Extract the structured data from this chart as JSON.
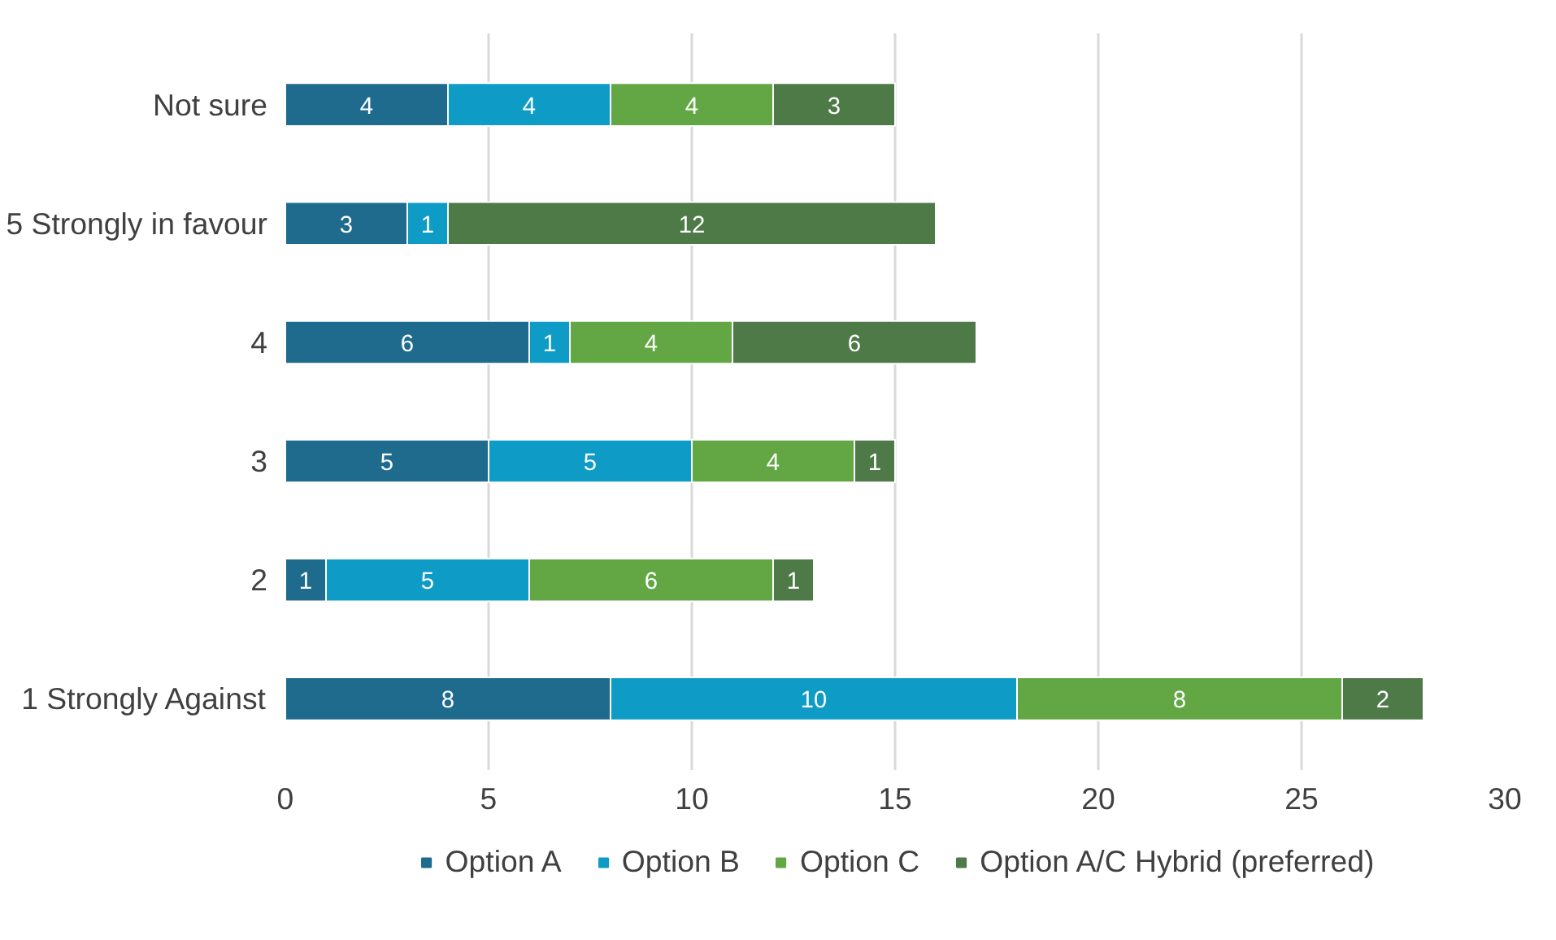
{
  "chart_data": {
    "type": "bar",
    "orientation": "horizontal",
    "stacked": true,
    "categories": [
      "Not sure",
      "5 Strongly in favour",
      "4",
      "3",
      "2",
      "1 Strongly Against"
    ],
    "series": [
      {
        "name": "Option A",
        "color": "#1f6b8e",
        "values": [
          4,
          3,
          6,
          5,
          1,
          8
        ]
      },
      {
        "name": "Option B",
        "color": "#0e9cc6",
        "values": [
          4,
          1,
          1,
          5,
          5,
          10
        ]
      },
      {
        "name": "Option C",
        "color": "#62a744",
        "values": [
          4,
          null,
          4,
          4,
          6,
          8
        ]
      },
      {
        "name": "Option A/C Hybrid (preferred)",
        "color": "#4e7a48",
        "values": [
          3,
          12,
          6,
          1,
          1,
          2
        ]
      }
    ],
    "xlim": [
      0,
      30
    ],
    "xticks": [
      0,
      5,
      10,
      15,
      20,
      25,
      30
    ],
    "grid": "x",
    "legend": "bottom",
    "data_labels": true
  }
}
